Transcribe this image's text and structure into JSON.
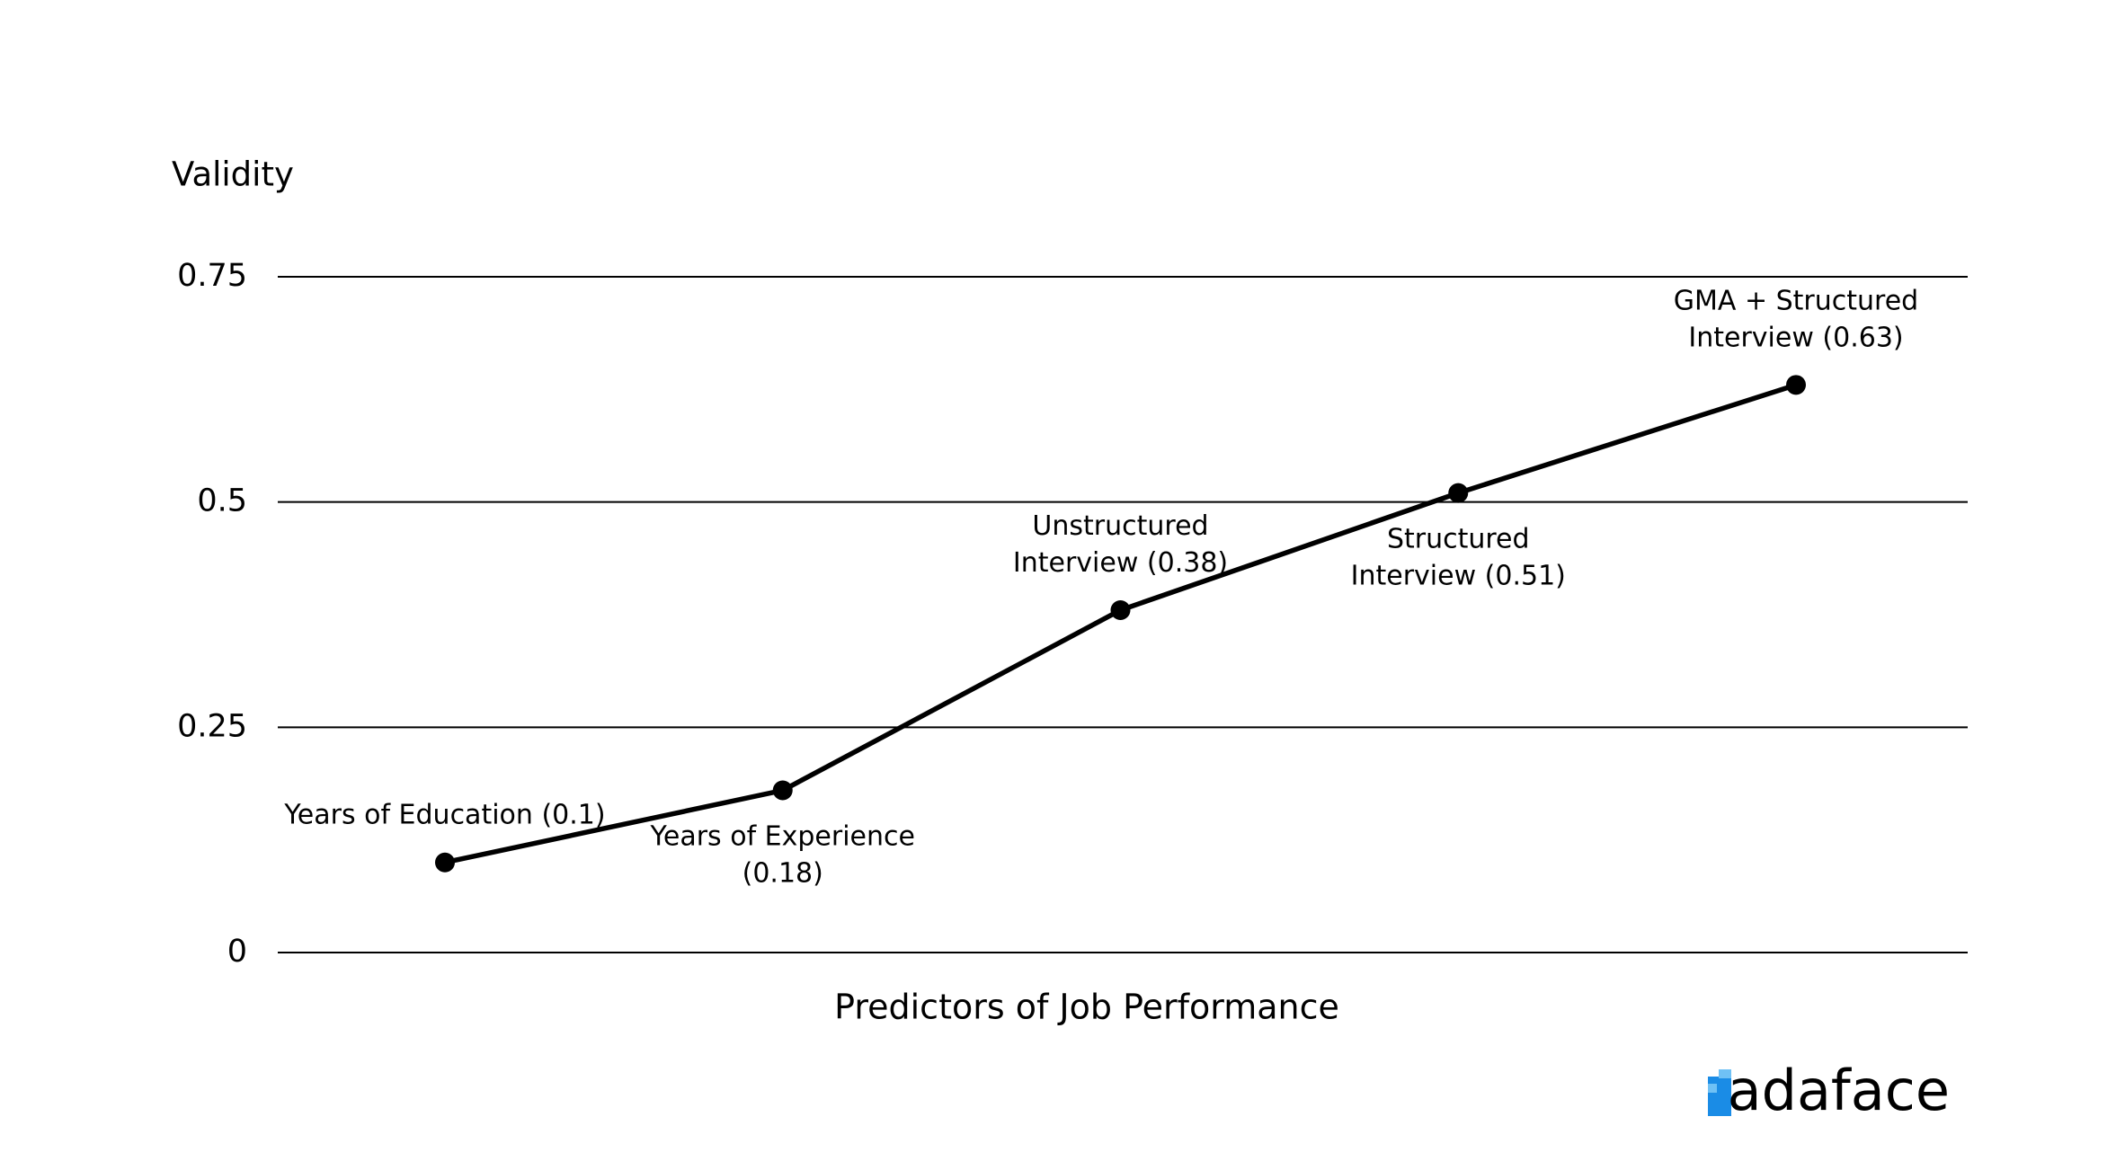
{
  "chart_data": {
    "type": "line",
    "title": "Validity",
    "x_label": "Predictors of Job Performance",
    "values": [
      0.1,
      0.18,
      0.38,
      0.51,
      0.63
    ],
    "value_labels": [
      "Years of Education (0.1)",
      "Years of Experience\n(0.18)",
      "Unstructured\nInterview (0.38)",
      "Structured\nInterview (0.51)",
      "GMA + Structured\nInterview (0.63)"
    ],
    "color": "#000000",
    "ylim": [
      0,
      0.75
    ],
    "yticks": [
      0,
      0.25,
      0.5,
      0.75
    ],
    "grid": true
  },
  "logo": "adaface"
}
